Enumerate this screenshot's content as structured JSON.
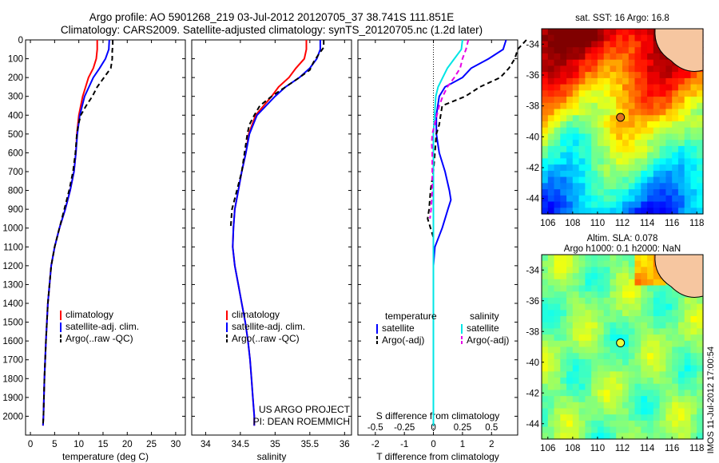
{
  "header": {
    "line1": "Argo profile: AO 5901268_219 03-Jul-2012 20120705_37 38.741S 111.851E",
    "line2": "Climatology: CARS2009. Satellite-adjusted climatology: synTS_20120705.nc (1.2d later)"
  },
  "colors": {
    "climatology": "#ff0000",
    "satellite": "#0000ff",
    "argo": "#000000",
    "satellite_s": "#00e5e5",
    "argo_s": "#e600e6"
  },
  "chart_data": [
    {
      "type": "line",
      "title": "",
      "xlabel": "temperature (deg C)",
      "ylabel": "",
      "xlim": [
        -1,
        32
      ],
      "ylim": [
        2100,
        0
      ],
      "xticks": [
        0,
        5,
        10,
        15,
        20,
        25,
        30
      ],
      "yticks": [
        0,
        100,
        200,
        300,
        400,
        500,
        600,
        700,
        800,
        900,
        1000,
        1100,
        1200,
        1300,
        1400,
        1500,
        1600,
        1700,
        1800,
        1900,
        2000
      ],
      "legend": [
        "climatology",
        "satellite-adj. clim.",
        "Argo(..raw -QC)"
      ],
      "series": [
        {
          "name": "climatology",
          "style": "solid",
          "color": "#ff0000",
          "depth": [
            0,
            50,
            100,
            150,
            200,
            300,
            400,
            500,
            600,
            700,
            800,
            900,
            1000,
            1100,
            1200,
            1400,
            1600,
            1800,
            2000,
            2050
          ],
          "values": [
            13.8,
            13.8,
            13.6,
            13.0,
            12.0,
            10.8,
            10.0,
            9.6,
            9.4,
            9.0,
            8.2,
            7.2,
            6.0,
            5.0,
            4.3,
            3.6,
            3.2,
            2.9,
            2.7,
            2.6
          ]
        },
        {
          "name": "satellite-adj. clim.",
          "style": "solid",
          "color": "#0000ff",
          "depth": [
            0,
            50,
            100,
            150,
            200,
            300,
            400,
            500,
            600,
            700,
            800,
            900,
            1000,
            1100,
            1200,
            1400,
            1600,
            1800,
            2000,
            2050
          ],
          "values": [
            16.3,
            16.2,
            15.5,
            14.3,
            13.0,
            11.2,
            10.2,
            9.7,
            9.4,
            9.0,
            8.2,
            7.2,
            6.0,
            5.0,
            4.3,
            3.6,
            3.2,
            2.9,
            2.7,
            2.6
          ]
        },
        {
          "name": "Argo(..raw -QC)",
          "style": "dashed",
          "color": "#000000",
          "depth": [
            0,
            30,
            60,
            100,
            150,
            200,
            250,
            300,
            350,
            400,
            450,
            500,
            600,
            700,
            800,
            900,
            1000,
            1100,
            1200,
            1400,
            1600,
            1800,
            2000,
            2050
          ],
          "values": [
            17.0,
            17.0,
            16.9,
            16.9,
            16.6,
            15.2,
            13.8,
            12.8,
            11.5,
            10.4,
            9.9,
            9.6,
            9.3,
            8.8,
            8.0,
            7.0,
            6.0,
            5.0,
            4.3,
            3.6,
            3.2,
            2.9,
            2.7,
            2.6
          ]
        }
      ]
    },
    {
      "type": "line",
      "title": "",
      "xlabel": "salinity",
      "ylabel": "",
      "xlim": [
        33.8,
        36.1
      ],
      "ylim": [
        2100,
        0
      ],
      "xticks": [
        34,
        34.5,
        35,
        35.5,
        36
      ],
      "legend": [
        "climatology",
        "satellite-adj. clim.",
        "Argo(..raw -QC)"
      ],
      "annotations": [
        "US ARGO PROJECT",
        "PI: DEAN ROEMMICH"
      ],
      "series": [
        {
          "name": "climatology",
          "style": "solid",
          "color": "#ff0000",
          "depth": [
            0,
            50,
            100,
            150,
            200,
            250,
            300,
            400,
            500,
            600,
            700,
            800,
            900,
            1000,
            1100,
            1200,
            1300,
            1400,
            1500,
            1600,
            1700,
            1800,
            1900,
            2000,
            2050
          ],
          "values": [
            35.45,
            35.45,
            35.42,
            35.3,
            35.2,
            35.05,
            34.95,
            34.72,
            34.62,
            34.58,
            34.52,
            34.47,
            34.42,
            34.4,
            34.39,
            34.42,
            34.47,
            34.52,
            34.57,
            34.61,
            34.64,
            34.66,
            34.68,
            34.7,
            34.7
          ]
        },
        {
          "name": "satellite-adj. clim.",
          "style": "solid",
          "color": "#0000ff",
          "depth": [
            0,
            50,
            100,
            150,
            200,
            250,
            300,
            400,
            500,
            600,
            700,
            800,
            900,
            1000,
            1100,
            1200,
            1300,
            1400,
            1500,
            1600,
            1700,
            1800,
            1900,
            2000,
            2050
          ],
          "values": [
            35.65,
            35.65,
            35.6,
            35.5,
            35.35,
            35.15,
            35.0,
            34.74,
            34.63,
            34.58,
            34.52,
            34.47,
            34.42,
            34.4,
            34.39,
            34.42,
            34.47,
            34.52,
            34.57,
            34.61,
            34.64,
            34.66,
            34.68,
            34.7,
            34.7
          ]
        },
        {
          "name": "Argo(..raw -QC)",
          "style": "dashed",
          "color": "#000000",
          "depth": [
            0,
            40,
            80,
            120,
            160,
            200,
            250,
            300,
            350,
            400,
            450,
            500,
            600,
            700,
            800,
            900,
            1000
          ],
          "values": [
            35.7,
            35.7,
            35.62,
            35.55,
            35.5,
            35.35,
            35.15,
            34.95,
            34.78,
            34.7,
            34.63,
            34.6,
            34.56,
            34.52,
            34.45,
            34.38,
            34.36
          ]
        }
      ]
    },
    {
      "type": "line",
      "title": "",
      "xlabel": "T difference from climatology",
      "ylabel": "",
      "xlim": [
        -2.6,
        2.9
      ],
      "ylim": [
        2100,
        0
      ],
      "xticks": [
        -2,
        -1,
        0,
        1,
        2
      ],
      "top_axis_label": "S difference from climatology",
      "top_axis_ticks": [
        "-0.5",
        "-0.25",
        "0",
        "0.25",
        "0.5"
      ],
      "legend": [
        "temperature",
        "satellite",
        "Argo(-adj)",
        "salinity",
        "satellite",
        "Argo(-adj)"
      ],
      "series": [
        {
          "name": "T satellite",
          "style": "solid",
          "color": "#0000ff",
          "depth": [
            0,
            50,
            100,
            150,
            200,
            250,
            300,
            400,
            500,
            600,
            700,
            800,
            850,
            900,
            950,
            1000,
            1100,
            1200,
            2050
          ],
          "values": [
            2.5,
            2.4,
            1.9,
            1.3,
            1.0,
            0.4,
            0.2,
            0.1,
            0.1,
            0.2,
            0.4,
            0.55,
            0.6,
            0.5,
            0.4,
            0.3,
            0.05,
            0.0,
            0.0
          ]
        },
        {
          "name": "T Argo(-adj)",
          "style": "dashed",
          "color": "#000000",
          "depth": [
            0,
            50,
            100,
            150,
            200,
            250,
            300,
            350,
            400,
            450,
            500,
            600,
            700,
            800,
            900,
            950,
            1000,
            1050,
            1100,
            1200,
            2050
          ],
          "values": [
            3.2,
            2.9,
            2.8,
            2.6,
            2.3,
            1.6,
            1.1,
            0.3,
            0.25,
            0.2,
            0.1,
            0.05,
            0.0,
            -0.1,
            -0.15,
            -0.2,
            -0.1,
            0.0,
            0.0,
            0.0,
            0.0
          ]
        },
        {
          "name": "S satellite",
          "style": "solid",
          "color": "#00e5e5",
          "depth": [
            0,
            50,
            100,
            150,
            200,
            250,
            300,
            400,
            500,
            600,
            800,
            1000,
            1200,
            1500,
            2050
          ],
          "values": [
            0.25,
            0.24,
            0.18,
            0.12,
            0.08,
            0.04,
            0.02,
            0.01,
            0.0,
            0.0,
            0.0,
            0.0,
            0.0,
            0.0,
            0.0
          ]
        },
        {
          "name": "S Argo(-adj)",
          "style": "dashed",
          "color": "#e600e6",
          "depth": [
            0,
            50,
            100,
            150,
            200,
            250,
            300,
            350,
            400,
            450,
            500,
            550,
            600,
            700,
            800,
            900,
            950
          ],
          "values": [
            0.3,
            0.28,
            0.25,
            0.23,
            0.18,
            0.12,
            0.08,
            0.05,
            0.03,
            0.01,
            -0.01,
            -0.015,
            -0.01,
            -0.01,
            -0.01,
            -0.02,
            -0.03
          ]
        }
      ]
    },
    {
      "type": "heatmap",
      "title": "sat. SST: 16 Argo: 16.8",
      "xlabel": "",
      "ylabel": "",
      "xlim": [
        105.5,
        118.5
      ],
      "ylim": [
        -45,
        -33
      ],
      "xticks": [
        106,
        108,
        110,
        112,
        114,
        116,
        118
      ],
      "yticks": [
        -34,
        -36,
        -38,
        -40,
        -42,
        -44
      ],
      "marker": {
        "lon": 111.851,
        "lat": -38.741
      },
      "colorscale": "jet"
    },
    {
      "type": "heatmap",
      "title": "Altim. SLA: 0.078",
      "subtitle": "Argo h1000: 0.1 h2000: NaN",
      "xlabel": "",
      "ylabel": "",
      "xlim": [
        105.5,
        118.5
      ],
      "ylim": [
        -45,
        -33
      ],
      "xticks": [
        106,
        108,
        110,
        112,
        114,
        116,
        118
      ],
      "yticks": [
        -34,
        -36,
        -38,
        -40,
        -42,
        -44
      ],
      "marker": {
        "lon": 111.851,
        "lat": -38.741
      },
      "colorscale": "jet"
    }
  ],
  "footer": {
    "stamp": "IMOS 11-Jul-2012 17:00:54"
  }
}
